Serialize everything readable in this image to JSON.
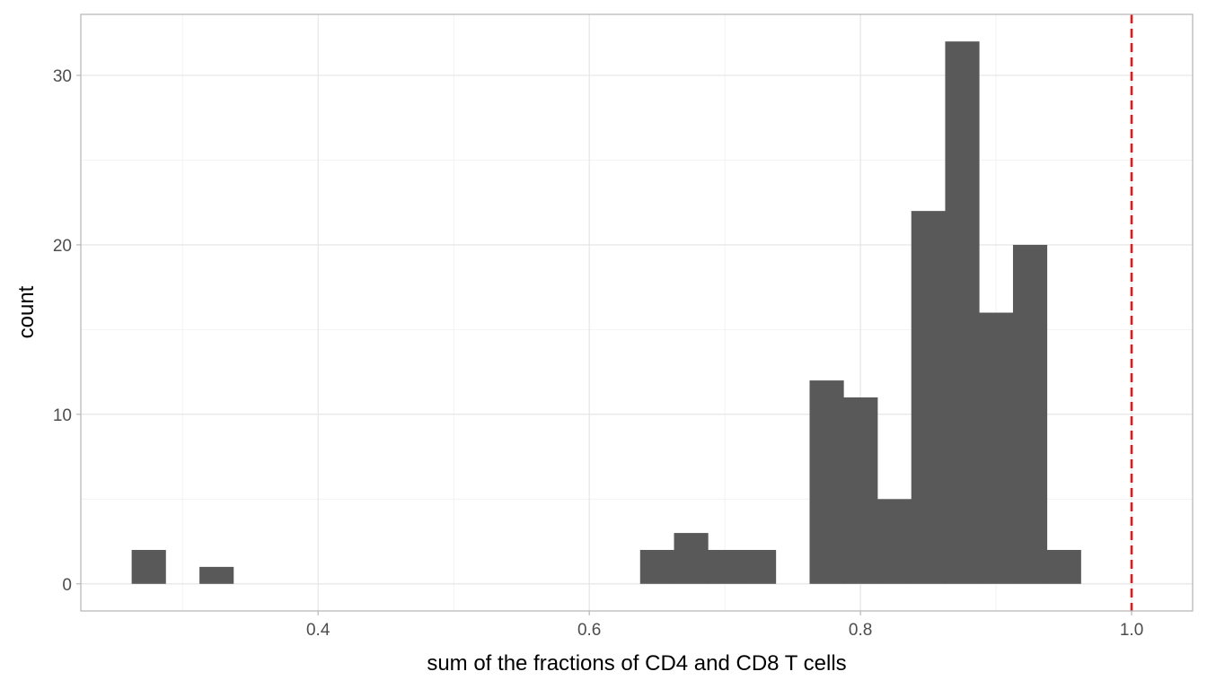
{
  "chart_data": {
    "type": "histogram",
    "title": "",
    "xlabel": "sum of the fractions of CD4 and CD8 T cells",
    "ylabel": "count",
    "xlim": [
      0.225,
      1.045
    ],
    "ylim": [
      -1.6,
      33.6
    ],
    "x_ticks": [
      {
        "value": 0.4,
        "label": "0.4"
      },
      {
        "value": 0.6,
        "label": "0.6"
      },
      {
        "value": 0.8,
        "label": "0.8"
      },
      {
        "value": 1.0,
        "label": "1.0"
      }
    ],
    "y_ticks": [
      {
        "value": 0,
        "label": "0"
      },
      {
        "value": 10,
        "label": "10"
      },
      {
        "value": 20,
        "label": "20"
      },
      {
        "value": 30,
        "label": "30"
      }
    ],
    "bin_width": 0.025,
    "bins": [
      {
        "x0": 0.2625,
        "x1": 0.2875,
        "count": 2
      },
      {
        "x0": 0.3125,
        "x1": 0.3375,
        "count": 1
      },
      {
        "x0": 0.6375,
        "x1": 0.6625,
        "count": 2
      },
      {
        "x0": 0.6625,
        "x1": 0.6875,
        "count": 3
      },
      {
        "x0": 0.6875,
        "x1": 0.7125,
        "count": 2
      },
      {
        "x0": 0.7125,
        "x1": 0.7375,
        "count": 2
      },
      {
        "x0": 0.7625,
        "x1": 0.7875,
        "count": 12
      },
      {
        "x0": 0.7875,
        "x1": 0.8125,
        "count": 11
      },
      {
        "x0": 0.8125,
        "x1": 0.8375,
        "count": 5
      },
      {
        "x0": 0.8375,
        "x1": 0.8625,
        "count": 22
      },
      {
        "x0": 0.8625,
        "x1": 0.8875,
        "count": 32
      },
      {
        "x0": 0.8875,
        "x1": 0.9125,
        "count": 16
      },
      {
        "x0": 0.9125,
        "x1": 0.9375,
        "count": 20
      },
      {
        "x0": 0.9375,
        "x1": 0.9625,
        "count": 2
      }
    ],
    "reference_line": {
      "x": 1.0,
      "color": "#e31a1c",
      "style": "dashed"
    },
    "bar_color": "#595959",
    "grid": true
  }
}
